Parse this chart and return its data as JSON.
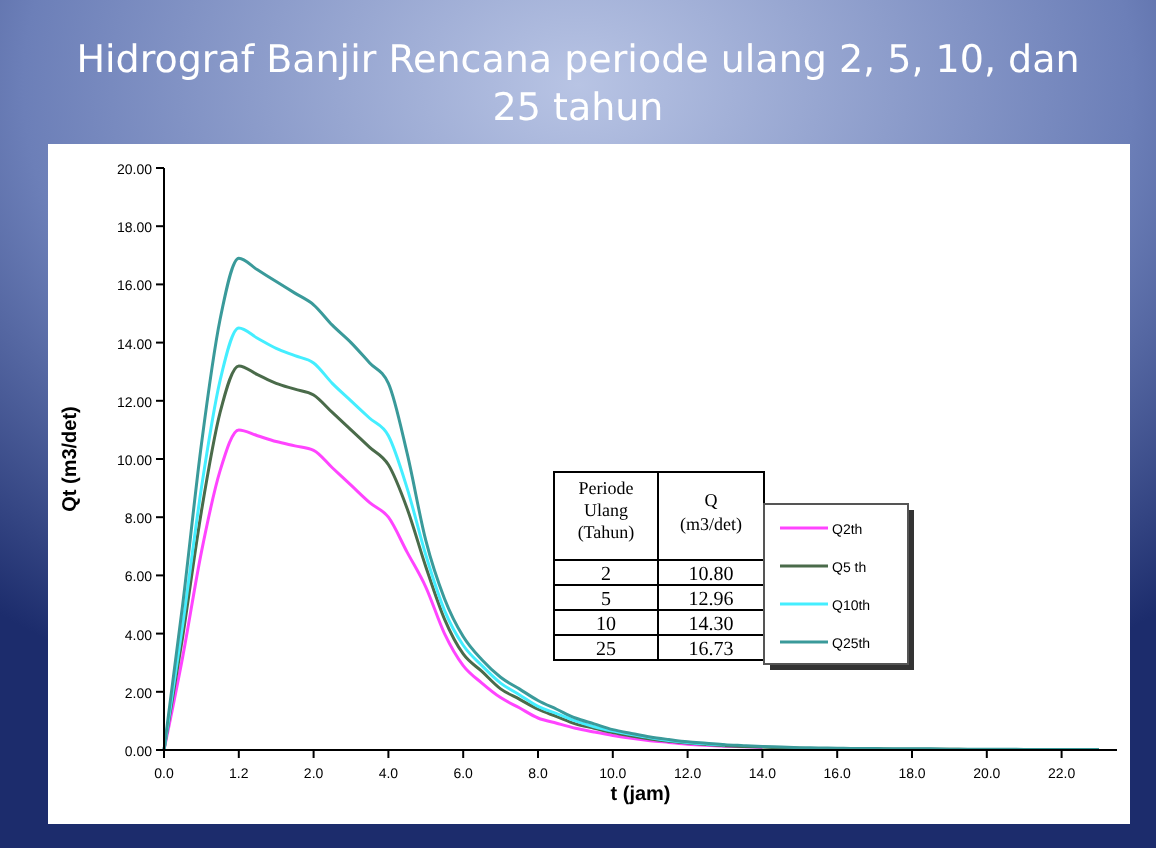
{
  "chart_data": {
    "type": "line",
    "title": "Hidrograf Banjir Rencana periode ulang 2, 5, 10, dan 25 tahun",
    "xlabel": "t (jam)",
    "ylabel": "Qt (m3/det)",
    "categories": [
      "0.0",
      null,
      null,
      null,
      "1.2",
      null,
      null,
      null,
      "2.0",
      null,
      null,
      null,
      "4.0",
      null,
      null,
      null,
      "6.0",
      null,
      null,
      null,
      "8.0",
      null,
      null,
      null,
      "10.0",
      null,
      null,
      null,
      "12.0",
      null,
      null,
      null,
      "14.0",
      null,
      null,
      null,
      "16.0",
      null,
      null,
      null,
      "18.0",
      null,
      null,
      null,
      "20.0",
      null,
      null,
      null,
      "22.0",
      null,
      null
    ],
    "series": [
      {
        "name": "Q2th",
        "color": "#ff44ff",
        "values": [
          0,
          3.2,
          6.8,
          9.6,
          11.0,
          10.8,
          10.6,
          10.45,
          10.3,
          9.7,
          9.1,
          8.5,
          8.0,
          6.8,
          5.6,
          4.0,
          2.9,
          2.3,
          1.8,
          1.45,
          1.1,
          0.92,
          0.75,
          0.62,
          0.5,
          0.4,
          0.32,
          0.26,
          0.2,
          0.16,
          0.13,
          0.11,
          0.09,
          null,
          null,
          null,
          null,
          null,
          null,
          null,
          null,
          null,
          null,
          null,
          null,
          null,
          null,
          null,
          null,
          null,
          null
        ]
      },
      {
        "name": "Q5 th",
        "color": "#4a6b4a",
        "values": [
          0,
          3.9,
          8.2,
          11.6,
          13.2,
          12.9,
          12.6,
          12.4,
          12.2,
          11.6,
          11.0,
          10.4,
          9.8,
          8.3,
          6.3,
          4.5,
          3.3,
          2.7,
          2.1,
          1.75,
          1.4,
          1.15,
          0.9,
          0.75,
          0.6,
          0.48,
          0.38,
          0.3,
          0.24,
          0.19,
          0.15,
          0.12,
          0.1,
          0.08,
          0.06,
          0.05,
          0.05,
          0.04,
          0.04,
          0.03,
          0.03,
          0.03,
          0.03,
          0.02,
          0.02,
          0.02,
          0.02,
          0.02,
          0.02,
          0.02,
          0.02
        ]
      },
      {
        "name": "Q10th",
        "color": "#44eeff",
        "values": [
          0,
          4.3,
          9.0,
          12.7,
          14.5,
          14.15,
          13.8,
          13.55,
          13.3,
          12.6,
          12.0,
          11.4,
          10.8,
          9.0,
          6.7,
          4.8,
          3.6,
          2.9,
          2.3,
          1.9,
          1.5,
          1.25,
          1.0,
          0.8,
          0.65,
          0.53,
          0.42,
          0.33,
          0.26,
          0.21,
          0.17,
          null,
          null,
          null,
          null,
          null,
          null,
          null,
          null,
          null,
          null,
          null,
          null,
          null,
          null,
          null,
          null,
          null,
          null,
          null,
          null
        ]
      },
      {
        "name": "Q25th",
        "color": "#3a9a9a",
        "values": [
          0,
          5.0,
          10.5,
          14.8,
          16.9,
          16.5,
          16.1,
          15.7,
          15.3,
          14.6,
          14.0,
          13.3,
          12.6,
          10.2,
          7.2,
          5.2,
          3.9,
          3.1,
          2.5,
          2.1,
          1.7,
          1.4,
          1.1,
          0.9,
          0.7,
          0.57,
          0.45,
          0.36,
          0.28,
          0.23,
          0.18,
          0.15,
          0.12,
          0.1,
          0.08,
          0.07,
          0.06,
          0.05,
          0.05,
          0.04,
          0.04,
          0.04,
          0.03,
          0.03,
          0.03,
          0.03,
          0.02,
          0.02,
          0.02,
          0.02,
          0.02
        ]
      }
    ],
    "ylim": [
      0,
      20
    ],
    "yticks": [
      {
        "value": 0,
        "label": "0.00"
      },
      {
        "value": 2,
        "label": "2.00"
      },
      {
        "value": 4,
        "label": "4.00"
      },
      {
        "value": 6,
        "label": "6.00"
      },
      {
        "value": 8,
        "label": "8.00"
      },
      {
        "value": 10,
        "label": "10.00"
      },
      {
        "value": 12,
        "label": "12.00"
      },
      {
        "value": 14,
        "label": "14.00"
      },
      {
        "value": 16,
        "label": "16.00"
      },
      {
        "value": 18,
        "label": "18.00"
      },
      {
        "value": 20,
        "label": "20.00"
      }
    ],
    "annotations": [
      "Periode Ulang (Tahun)",
      "Q (m3/det)",
      "2",
      "10.80",
      "5",
      "12.96",
      "10",
      "14.30",
      "25",
      "16.73"
    ],
    "legend": "right",
    "grid": false,
    "marker": "none",
    "line_style": "solid"
  }
}
